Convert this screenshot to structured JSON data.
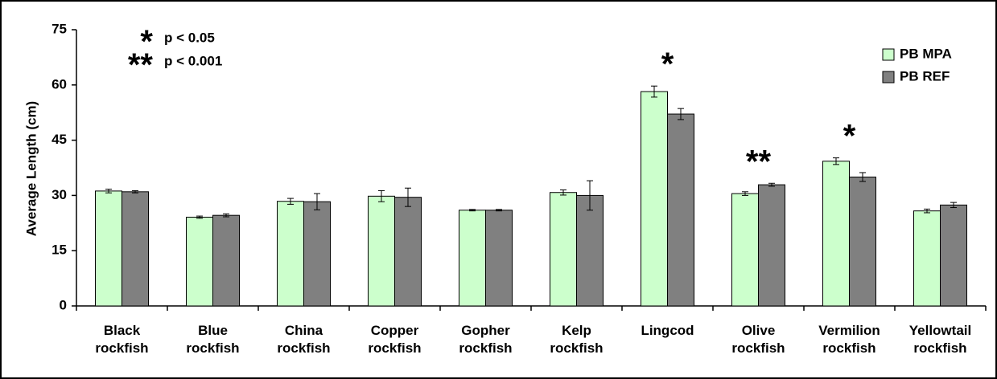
{
  "chart_data": {
    "type": "bar",
    "y_label": "Average Length (cm)",
    "categories": [
      "Black\nrockfish",
      "Blue\nrockfish",
      "China\nrockfish",
      "Copper\nrockfish",
      "Gopher\nrockfish",
      "Kelp\nrockfish",
      "Lingcod",
      "Olive\nrockfish",
      "Vermilion\nrockfish",
      "Yellowtail\nrockfish"
    ],
    "series": [
      {
        "name": "PB MPA",
        "color": "#ccffcc",
        "values": [
          31.2,
          24.1,
          28.4,
          29.8,
          26.0,
          30.8,
          58.2,
          30.5,
          39.3,
          25.8
        ],
        "errors": [
          0.5,
          0.3,
          0.8,
          1.5,
          0.2,
          0.7,
          1.5,
          0.5,
          0.9,
          0.5
        ]
      },
      {
        "name": "PB REF",
        "color": "#808080",
        "values": [
          31.0,
          24.6,
          28.3,
          29.5,
          26.0,
          30.0,
          52.1,
          32.9,
          35.0,
          27.4
        ],
        "errors": [
          0.3,
          0.4,
          2.2,
          2.5,
          0.2,
          4.0,
          1.5,
          0.4,
          1.2,
          0.7
        ]
      }
    ],
    "ylim": [
      0,
      75
    ],
    "yticks": [
      0,
      15,
      30,
      45,
      60,
      75
    ],
    "legend_position": "upper right",
    "significance_key": [
      {
        "symbol": "*",
        "label": "p < 0.05"
      },
      {
        "symbol": "**",
        "label": "p < 0.001"
      }
    ],
    "annotations": [
      {
        "text": "*",
        "category": "Lingcod"
      },
      {
        "text": "**",
        "category": "Olive\nrockfish"
      },
      {
        "text": "*",
        "category": "Vermilion\nrockfish"
      }
    ]
  }
}
